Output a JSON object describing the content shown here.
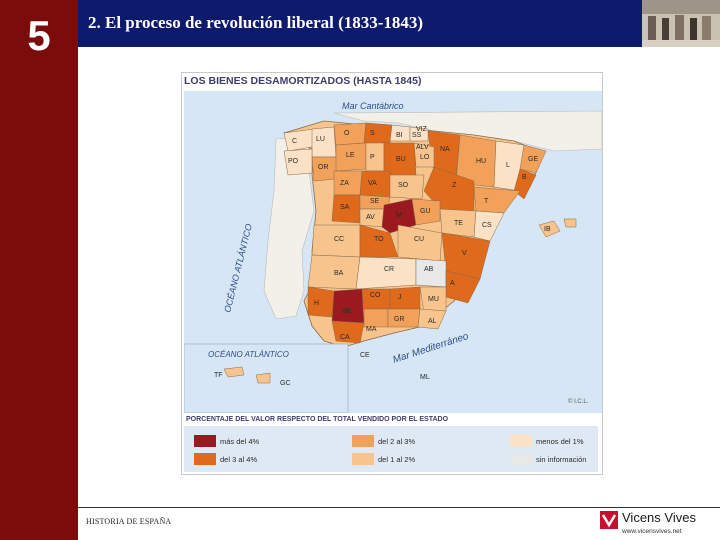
{
  "slide": {
    "chapter_number": "5",
    "title": "2. El proceso de revolución liberal (1833-1843)",
    "footer_text": "HISTORIA DE ESPAÑA",
    "brand_name": "Vicens Vives",
    "brand_url": "www.vicensvives.net"
  },
  "map": {
    "title": "LOS BIENES DESAMORTIZADOS (HASTA 1845)",
    "sea_labels": {
      "cantabrico": "Mar Cantábrico",
      "atlantico": "OCÉANO ATLÁNTICO",
      "atlantico_inset": "OCÉANO ATLÁNTICO",
      "mediterraneo": "Mar Mediterráneo"
    },
    "copyright": "© I.C.L.",
    "province_codes": [
      "C",
      "LU",
      "O",
      "S",
      "BI",
      "SS",
      "VIZ",
      "ALV",
      "NA",
      "PO",
      "OR",
      "LE",
      "P",
      "BU",
      "LO",
      "HU",
      "GE",
      "L",
      "B",
      "ZA",
      "VA",
      "SO",
      "Z",
      "T",
      "SA",
      "SE",
      "AV",
      "M",
      "GU",
      "TE",
      "CS",
      "CC",
      "TO",
      "CU",
      "V",
      "BA",
      "CR",
      "AB",
      "H",
      "CO",
      "J",
      "MU",
      "SE",
      "GR",
      "AL",
      "MA",
      "CA",
      "CE",
      "ML",
      "IB",
      "TF",
      "GC"
    ],
    "categories": [
      {
        "label": "más del 4%",
        "color": "#9a1a1f"
      },
      {
        "label": "del 3 al 4%",
        "color": "#e06a1c"
      },
      {
        "label": "del 2 al 3%",
        "color": "#f2a15a"
      },
      {
        "label": "del 1 al 2%",
        "color": "#f6c48c"
      },
      {
        "label": "menos del 1%",
        "color": "#fbe2c6"
      },
      {
        "label": "sin información",
        "color": "#e8e8e8"
      }
    ]
  },
  "legend": {
    "title": "PORCENTAJE DEL VALOR RESPECTO DEL TOTAL VENDIDO POR EL ESTADO"
  },
  "colors": {
    "sidebar": "#7a0c0c",
    "header": "#0e1a6b",
    "sea": "#d6e6f4"
  }
}
